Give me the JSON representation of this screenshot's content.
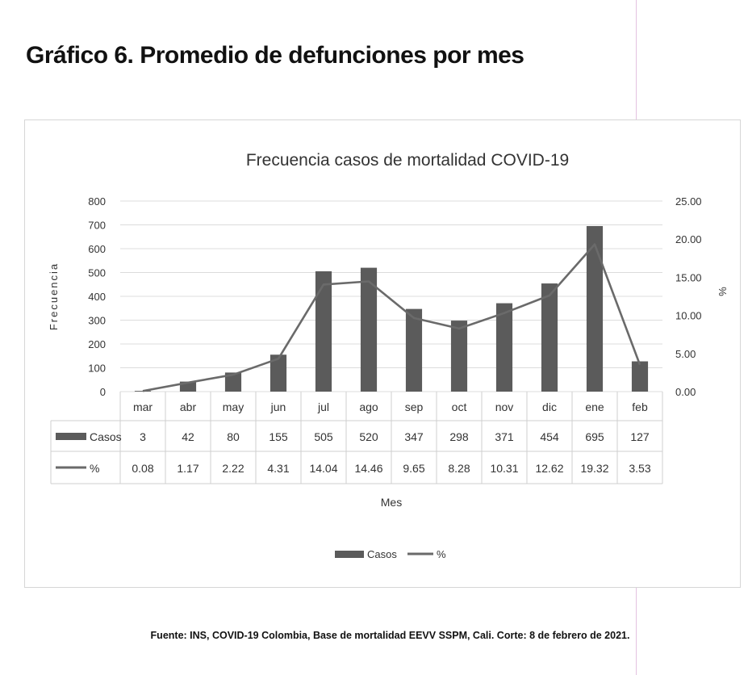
{
  "page": {
    "heading": "Gráfico 6. Promedio de defunciones por mes",
    "source": "Fuente: INS, COVID-19 Colombia, Base de mortalidad EEVV SSPM, Cali. Corte: 8 de febrero de 2021."
  },
  "colors": {
    "bar": "#5b5b5b",
    "line": "#6a6a6a",
    "grid": "#dcdcdc",
    "text": "#333333"
  },
  "chart_data": {
    "type": "bar",
    "title": "Frecuencia casos de mortalidad COVID-19",
    "xlabel": "Mes",
    "ylabel": "Frecuencia",
    "y2label": "%",
    "ylim": [
      0,
      800
    ],
    "y2lim": [
      0,
      25
    ],
    "yticks": [
      "0",
      "100",
      "200",
      "300",
      "400",
      "500",
      "600",
      "700",
      "800"
    ],
    "y2ticks": [
      "0.00",
      "5.00",
      "10.00",
      "15.00",
      "20.00",
      "25.00"
    ],
    "categories": [
      "mar",
      "abr",
      "may",
      "jun",
      "jul",
      "ago",
      "sep",
      "oct",
      "nov",
      "dic",
      "ene",
      "feb"
    ],
    "series": [
      {
        "name": "Casos",
        "type": "bar",
        "axis": "left",
        "values": [
          3,
          42,
          80,
          155,
          505,
          520,
          347,
          298,
          371,
          454,
          695,
          127
        ],
        "labels": [
          "3",
          "42",
          "80",
          "155",
          "505",
          "520",
          "347",
          "298",
          "371",
          "454",
          "695",
          "127"
        ]
      },
      {
        "name": "%",
        "type": "line",
        "axis": "right",
        "values": [
          0.08,
          1.17,
          2.22,
          4.31,
          14.04,
          14.46,
          9.65,
          8.28,
          10.31,
          12.62,
          19.32,
          3.53
        ],
        "labels": [
          "0.08",
          "1.17",
          "2.22",
          "4.31",
          "14.04",
          "14.46",
          "9.65",
          "8.28",
          "10.31",
          "12.62",
          "19.32",
          "3.53"
        ]
      }
    ],
    "grid": true,
    "legend": "bottom",
    "data_table": true
  }
}
